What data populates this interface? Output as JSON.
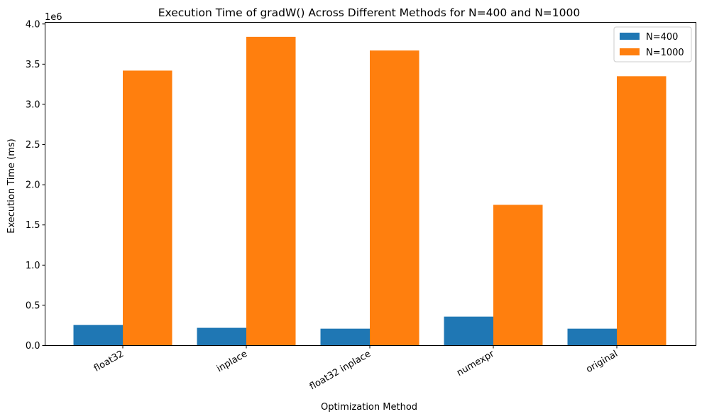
{
  "chart_data": {
    "type": "bar",
    "title": "Execution Time of gradW() Across Different Methods for N=400 and N=1000",
    "xlabel": "Optimization Method",
    "ylabel": "Execution Time (ms)",
    "y_offset_text": "1e6",
    "categories": [
      "float32",
      "inplace",
      "float32 inplace",
      "numexpr",
      "original"
    ],
    "series": [
      {
        "name": "N=400",
        "color": "#1f77b4",
        "values": [
          255000,
          220000,
          210000,
          360000,
          210000
        ]
      },
      {
        "name": "N=1000",
        "color": "#ff7f0e",
        "values": [
          3420000,
          3840000,
          3670000,
          1750000,
          3350000
        ]
      }
    ],
    "ylim": [
      0,
      4020000
    ],
    "yticks": [
      0,
      500000,
      1000000,
      1500000,
      2000000,
      2500000,
      3000000,
      3500000,
      4000000
    ],
    "ytick_labels": [
      "0.0",
      "0.5",
      "1.0",
      "1.5",
      "2.0",
      "2.5",
      "3.0",
      "3.5",
      "4.0"
    ],
    "legend_position": "top-right",
    "grid": false
  }
}
